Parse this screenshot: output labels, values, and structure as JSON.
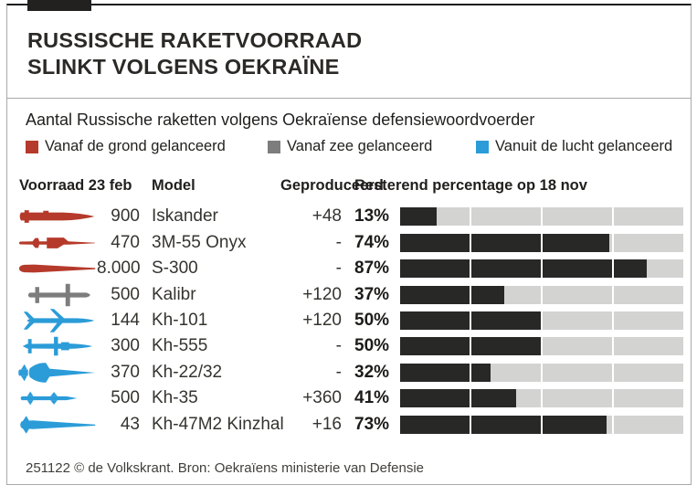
{
  "header": {
    "title_lines": [
      "RUSSISCHE RAKETVOORRAAD",
      "SLINKT VOLGENS OEKRAÏNE"
    ]
  },
  "subtitle": "Aantal Russische raketten volgens Oekraïense defensiewoordvoerder",
  "legend": {
    "items": [
      {
        "key": "ground",
        "label": "Vanaf de grond gelanceerd"
      },
      {
        "key": "sea",
        "label": "Vanaf zee gelanceerd"
      },
      {
        "key": "air",
        "label": "Vanuit de lucht gelanceerd"
      }
    ]
  },
  "colors": {
    "ground": "#b53a2b",
    "sea": "#7d7d7d",
    "air": "#2b9cd8",
    "bar_fill": "#282826",
    "bar_bg": "#d3d3d2"
  },
  "table": {
    "headers": {
      "stock": "Voorraad 23 feb",
      "model": "Model",
      "produced": "Geproduceerd",
      "remaining": "Resterend percentage op 18 nov"
    },
    "rows": [
      {
        "icon": "iskander-missile",
        "launch": "ground",
        "stock": "900",
        "model": "Iskander",
        "produced": "+48",
        "remaining_pct": 13
      },
      {
        "icon": "onyx-missile",
        "launch": "ground",
        "stock": "470",
        "model": "3M-55 Onyx",
        "produced": "-",
        "remaining_pct": 74
      },
      {
        "icon": "s300-missile",
        "launch": "ground",
        "stock": "8.000",
        "model": "S-300",
        "produced": "-",
        "remaining_pct": 87
      },
      {
        "icon": "kalibr-missile",
        "launch": "sea",
        "stock": "500",
        "model": "Kalibr",
        "produced": "+120",
        "remaining_pct": 37
      },
      {
        "icon": "kh101-missile",
        "launch": "air",
        "stock": "144",
        "model": "Kh-101",
        "produced": "+120",
        "remaining_pct": 50
      },
      {
        "icon": "kh555-missile",
        "launch": "air",
        "stock": "300",
        "model": "Kh-555",
        "produced": "-",
        "remaining_pct": 50
      },
      {
        "icon": "kh2232-missile",
        "launch": "air",
        "stock": "370",
        "model": "Kh-22/32",
        "produced": "-",
        "remaining_pct": 32
      },
      {
        "icon": "kh35-missile",
        "launch": "air",
        "stock": "500",
        "model": "Kh-35",
        "produced": "+360",
        "remaining_pct": 41
      },
      {
        "icon": "kinzhal-missile",
        "launch": "air",
        "stock": "43",
        "model": "Kh-47M2 Kinzhal",
        "produced": "+16",
        "remaining_pct": 73
      }
    ]
  },
  "footer": {
    "credit": "251122 © de Volkskrant. Bron: Oekraïens ministerie van Defensie"
  },
  "chart_data": {
    "type": "bar",
    "title": "Russische raketvoorraad slinkt volgens Oekraïne",
    "subtitle": "Aantal Russische raketten volgens Oekraïense defensiewoordvoerder",
    "categories": [
      "Iskander",
      "3M-55 Onyx",
      "S-300",
      "Kalibr",
      "Kh-101",
      "Kh-555",
      "Kh-22/32",
      "Kh-35",
      "Kh-47M2 Kinzhal"
    ],
    "series": [
      {
        "name": "Voorraad 23 feb",
        "values": [
          900,
          470,
          8000,
          500,
          144,
          300,
          370,
          500,
          43
        ]
      },
      {
        "name": "Geproduceerd",
        "values": [
          48,
          null,
          null,
          120,
          120,
          null,
          null,
          360,
          16
        ]
      },
      {
        "name": "Resterend percentage op 18 nov",
        "values": [
          13,
          74,
          87,
          37,
          50,
          50,
          32,
          41,
          73
        ]
      }
    ],
    "launch_platform": [
      "grond",
      "grond",
      "grond",
      "zee",
      "lucht",
      "lucht",
      "lucht",
      "lucht",
      "lucht"
    ],
    "legend_entries": [
      "Vanaf de grond gelanceerd",
      "Vanaf zee gelanceerd",
      "Vanuit de lucht gelanceerd"
    ],
    "bar_axis": {
      "unit": "%",
      "range": [
        0,
        100
      ],
      "segments": 4
    },
    "legend_position": "top",
    "grid": false
  }
}
